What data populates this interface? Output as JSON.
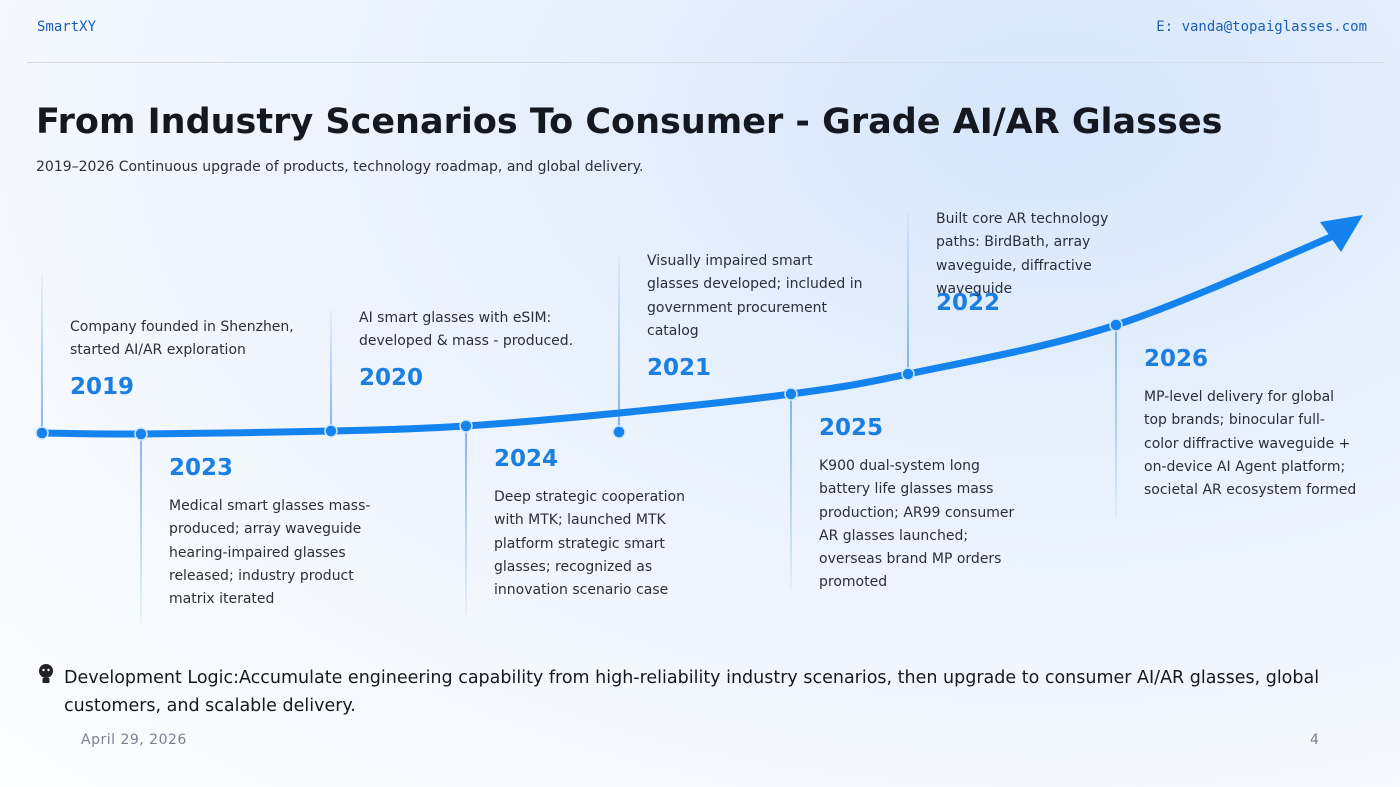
{
  "header": {
    "brand": "SmartXY",
    "email": "E: vanda@topaiglasses.com"
  },
  "title": "From Industry Scenarios To Consumer - Grade AI/AR Glasses",
  "subtitle": "2019–2026 Continuous upgrade of products, technology roadmap, and global delivery.",
  "milestones": [
    {
      "year": "2019",
      "text": "Company founded in Shenzhen, started AI/AR exploration"
    },
    {
      "year": "2023",
      "text": "Medical smart glasses mass-produced; array waveguide hearing-impaired glasses released; industry product matrix iterated"
    },
    {
      "year": "2020",
      "text": "AI smart glasses with eSIM: developed & mass - produced."
    },
    {
      "year": "2024",
      "text": "Deep strategic cooperation with MTK; launched MTK platform strategic smart glasses; recognized as innovation scenario case"
    },
    {
      "year": "2021",
      "text": "Visually impaired smart glasses developed; included in government procurement catalog"
    },
    {
      "year": "2025",
      "text": "K900 dual-system long battery life glasses mass production; AR99 consumer AR glasses launched; overseas brand MP orders promoted"
    },
    {
      "year": "2022",
      "text": "Built core AR technology paths: BirdBath, array waveguide, diffractive waveguide"
    },
    {
      "year": "2026",
      "text": "MP-level delivery for global top brands; binocular full-color diffractive waveguide + on-device AI Agent platform; societal AR ecosystem formed"
    }
  ],
  "note": "Development Logic:Accumulate engineering capability from high-reliability industry scenarios, then upgrade to consumer AI/AR glasses, global customers, and scalable delivery.",
  "footer": {
    "date": "April 29, 2026",
    "page": "4"
  }
}
